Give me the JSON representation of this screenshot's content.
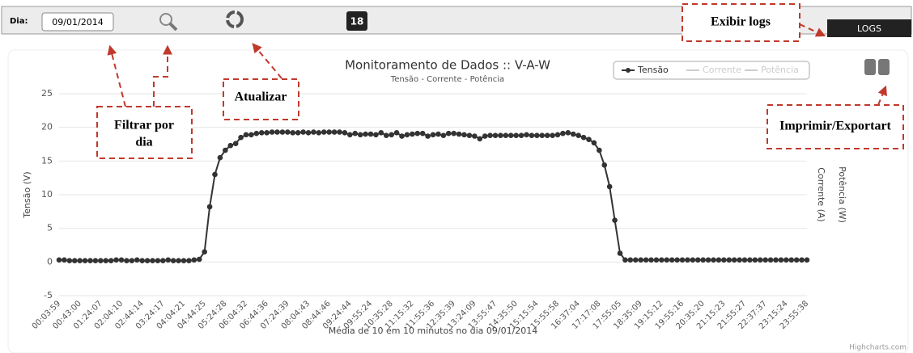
{
  "toolbar": {
    "day_label": "Dia:",
    "date_input": "09/01/2014",
    "badge": "18",
    "logs_button": "LOGS"
  },
  "annotations": {
    "logs": "Exibir logs",
    "filter": [
      "Filtrar por",
      "dia"
    ],
    "refresh": "Atualizar",
    "export": "Imprimir/Exportart"
  },
  "chart_data": {
    "type": "line",
    "title": "Monitoramento de Dados :: V-A-W",
    "subtitle": "Tensão - Corrente - Potência",
    "x_label": "Média de 10 em 10 minutos no dia 09/01/2014",
    "y_label": "Tensão (V)",
    "y2_labels": [
      "Corrente (A)",
      "Potência (W)"
    ],
    "credits": "Highcharts.com",
    "legend_position": "top-right",
    "legend_hidden": [
      "Corrente",
      "Potência"
    ],
    "grid": true,
    "ylim": [
      -5,
      25
    ],
    "yticks": [
      -5,
      0,
      5,
      10,
      15,
      20,
      25
    ],
    "categories": [
      "00:03:59",
      null,
      null,
      null,
      "00:43:00",
      null,
      null,
      null,
      "01:24:07",
      null,
      null,
      null,
      "02:04:10",
      null,
      null,
      null,
      "02:44:14",
      null,
      null,
      null,
      "03:24:17",
      null,
      null,
      null,
      "04:04:21",
      null,
      null,
      null,
      "04:44:25",
      null,
      null,
      null,
      "05:24:28",
      null,
      null,
      null,
      "06:04:32",
      null,
      null,
      null,
      "06:44:36",
      null,
      null,
      null,
      "07:24:39",
      null,
      null,
      null,
      "08:04:43",
      null,
      null,
      null,
      "08:44:46",
      null,
      null,
      null,
      "09:24:44",
      null,
      null,
      null,
      "09:55:24",
      null,
      null,
      null,
      "10:35:28",
      null,
      null,
      null,
      "11:15:32",
      null,
      null,
      null,
      "11:55:36",
      null,
      null,
      null,
      "12:35:39",
      null,
      null,
      null,
      "13:24:09",
      null,
      null,
      null,
      "13:55:47",
      null,
      null,
      null,
      "14:35:50",
      null,
      null,
      null,
      "15:15:54",
      null,
      null,
      null,
      "15:55:58",
      null,
      null,
      null,
      "16:37:04",
      null,
      null,
      null,
      "17:17:08",
      null,
      null,
      null,
      "17:55:05",
      null,
      null,
      null,
      "18:35:09",
      null,
      null,
      null,
      "19:15:12",
      null,
      null,
      null,
      "19:55:16",
      null,
      null,
      null,
      "20:35:20",
      null,
      null,
      null,
      "21:15:23",
      null,
      null,
      null,
      "21:55:27",
      null,
      null,
      null,
      "22:37:37",
      null,
      null,
      null,
      "23:15:24",
      null,
      null,
      null,
      "23:55:38"
    ],
    "series": [
      {
        "name": "Tensão",
        "color": "#333333",
        "values": [
          0.3,
          0.3,
          0.2,
          0.2,
          0.2,
          0.2,
          0.2,
          0.2,
          0.2,
          0.2,
          0.2,
          0.3,
          0.3,
          0.2,
          0.2,
          0.3,
          0.2,
          0.2,
          0.2,
          0.2,
          0.2,
          0.3,
          0.2,
          0.2,
          0.2,
          0.2,
          0.3,
          0.4,
          1.5,
          8.2,
          13.0,
          15.5,
          16.6,
          17.3,
          17.6,
          18.5,
          18.9,
          18.9,
          19.1,
          19.2,
          19.2,
          19.3,
          19.3,
          19.3,
          19.3,
          19.2,
          19.2,
          19.3,
          19.2,
          19.3,
          19.2,
          19.3,
          19.3,
          19.3,
          19.3,
          19.2,
          18.9,
          19.1,
          18.9,
          19.0,
          19.0,
          18.9,
          19.2,
          18.8,
          18.9,
          19.2,
          18.7,
          18.9,
          19.0,
          19.1,
          19.1,
          18.7,
          18.9,
          19.0,
          18.8,
          19.1,
          19.1,
          19.0,
          18.9,
          18.8,
          18.7,
          18.3,
          18.7,
          18.8,
          18.8,
          18.8,
          18.8,
          18.8,
          18.8,
          18.8,
          18.9,
          18.8,
          18.8,
          18.8,
          18.8,
          18.8,
          18.9,
          19.1,
          19.2,
          19.0,
          18.8,
          18.5,
          18.2,
          17.7,
          16.6,
          14.4,
          11.2,
          6.2,
          1.3,
          0.3,
          0.3,
          0.3,
          0.3,
          0.3,
          0.3,
          0.3,
          0.3,
          0.3,
          0.3,
          0.3,
          0.3,
          0.3,
          0.3,
          0.3,
          0.3,
          0.3,
          0.3,
          0.3,
          0.3,
          0.3,
          0.3,
          0.3,
          0.3,
          0.3,
          0.3,
          0.3,
          0.3,
          0.3,
          0.3,
          0.3,
          0.3,
          0.3,
          0.3,
          0.3,
          0.3
        ]
      }
    ]
  }
}
